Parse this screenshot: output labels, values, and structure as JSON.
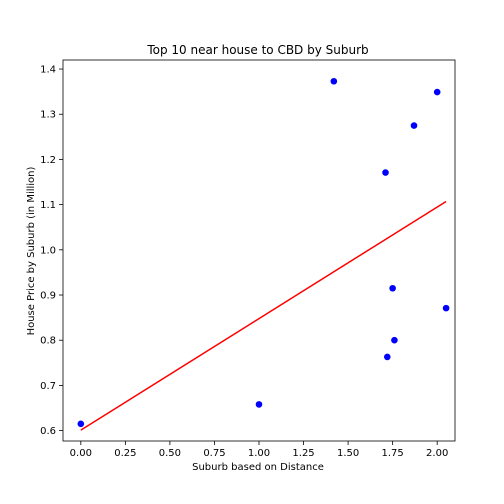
{
  "chart_data": {
    "type": "scatter",
    "title": "Top 10 near house to CBD by Suburb",
    "xlabel": "Suburb based on Distance",
    "ylabel": "House Price by Suburb (in Million)",
    "xlim": [
      -0.1,
      2.1
    ],
    "ylim": [
      0.577,
      1.42
    ],
    "xticks": [
      0.0,
      0.25,
      0.5,
      0.75,
      1.0,
      1.25,
      1.5,
      1.75,
      2.0
    ],
    "xtick_labels": [
      "0.00",
      "0.25",
      "0.50",
      "0.75",
      "1.00",
      "1.25",
      "1.50",
      "1.75",
      "2.00"
    ],
    "yticks": [
      0.6,
      0.7,
      0.8,
      0.9,
      1.0,
      1.1,
      1.2,
      1.3,
      1.4
    ],
    "ytick_labels": [
      "0.6",
      "0.7",
      "0.8",
      "0.9",
      "1.0",
      "1.1",
      "1.2",
      "1.3",
      "1.4"
    ],
    "grid": false,
    "points": {
      "color": "#0000ff",
      "x": [
        0.0,
        1.0,
        1.42,
        1.71,
        1.72,
        1.75,
        1.76,
        1.87,
        2.0,
        2.05
      ],
      "y": [
        0.615,
        0.658,
        1.373,
        1.171,
        0.763,
        0.915,
        0.8,
        1.275,
        1.349,
        0.871
      ]
    },
    "trend_line": {
      "color": "#ff0000",
      "x": [
        0.0,
        2.05
      ],
      "y": [
        0.601,
        1.107
      ]
    }
  }
}
